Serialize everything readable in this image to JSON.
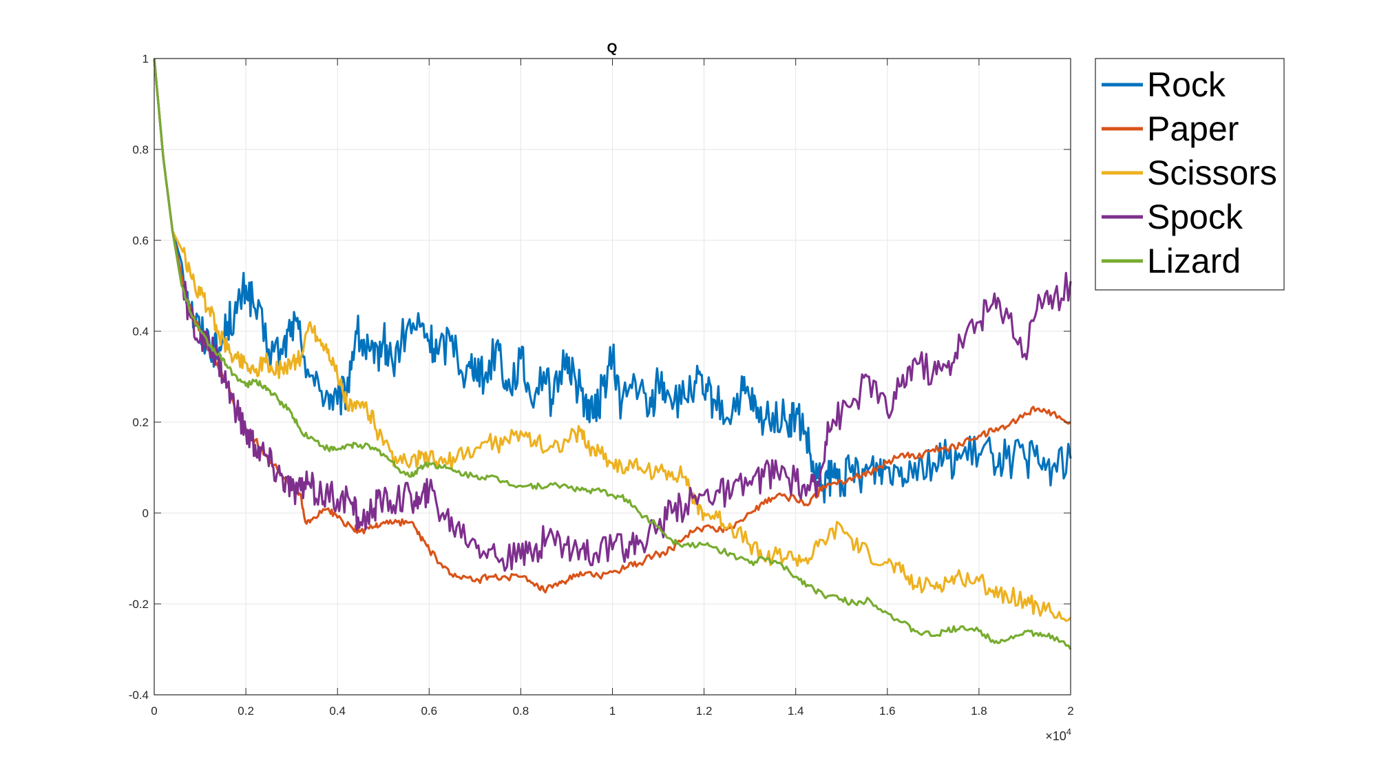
{
  "chart_data": {
    "type": "line",
    "title": "Q",
    "xlabel": "",
    "ylabel": "",
    "xlim": [
      0,
      20000
    ],
    "ylim": [
      -0.4,
      1
    ],
    "x_ticks": [
      0,
      2000,
      4000,
      6000,
      8000,
      10000,
      12000,
      14000,
      16000,
      18000,
      20000
    ],
    "x_tick_labels": [
      "0",
      "0.2",
      "0.4",
      "0.6",
      "0.8",
      "1",
      "1.2",
      "1.4",
      "1.6",
      "1.8",
      "2"
    ],
    "x_exponent_label": "×10",
    "x_exponent_power": "4",
    "y_ticks": [
      -0.4,
      -0.2,
      0,
      0.2,
      0.4,
      0.6,
      0.8,
      1
    ],
    "y_tick_labels": [
      "-0.4",
      "-0.2",
      "0",
      "0.2",
      "0.4",
      "0.6",
      "0.8",
      "1"
    ],
    "grid": true,
    "legend_position": "outside-top-right",
    "series": [
      {
        "name": "Rock",
        "color": "#0072BD",
        "x": [
          0,
          200,
          400,
          600,
          800,
          1000,
          1200,
          1400,
          1600,
          1800,
          2000,
          2200,
          2500,
          2800,
          3000,
          3200,
          3500,
          3800,
          4000,
          4200,
          4400,
          4600,
          4800,
          5000,
          5200,
          5500,
          5800,
          6000,
          6200,
          6500,
          6800,
          7000,
          7200,
          7500,
          7700,
          8000,
          8200,
          8500,
          8700,
          9000,
          9200,
          9400,
          9600,
          9800,
          10000,
          10200,
          10500,
          10800,
          11000,
          11200,
          11500,
          11800,
          12000,
          12200,
          12500,
          12800,
          13000,
          13200,
          13500,
          13800,
          14000,
          14200,
          14400,
          14600,
          14800,
          15000,
          15200,
          15500,
          15800,
          16000,
          16300,
          16600,
          17000,
          17300,
          17600,
          18000,
          18300,
          18600,
          19000,
          19300,
          19600,
          20000
        ],
        "y": [
          1,
          0.78,
          0.62,
          0.55,
          0.45,
          0.4,
          0.38,
          0.35,
          0.42,
          0.44,
          0.5,
          0.45,
          0.36,
          0.35,
          0.42,
          0.38,
          0.28,
          0.26,
          0.24,
          0.27,
          0.4,
          0.36,
          0.33,
          0.38,
          0.33,
          0.4,
          0.41,
          0.38,
          0.35,
          0.39,
          0.3,
          0.34,
          0.29,
          0.38,
          0.27,
          0.34,
          0.26,
          0.31,
          0.24,
          0.35,
          0.29,
          0.25,
          0.21,
          0.28,
          0.34,
          0.24,
          0.29,
          0.22,
          0.29,
          0.27,
          0.24,
          0.29,
          0.26,
          0.25,
          0.21,
          0.26,
          0.25,
          0.2,
          0.22,
          0.2,
          0.21,
          0.18,
          0.08,
          0.06,
          0.08,
          0.07,
          0.09,
          0.09,
          0.1,
          0.1,
          0.1,
          0.11,
          0.11,
          0.12,
          0.12,
          0.13,
          0.13,
          0.12,
          0.12,
          0.11,
          0.1,
          0.12
        ]
      },
      {
        "name": "Paper",
        "color": "#D95319",
        "x": [
          0,
          200,
          400,
          600,
          800,
          1000,
          1200,
          1400,
          1600,
          1800,
          2000,
          2200,
          2500,
          2800,
          3000,
          3200,
          3300,
          3500,
          3800,
          4000,
          4300,
          4500,
          4800,
          5000,
          5300,
          5600,
          5800,
          6000,
          6300,
          6600,
          7000,
          7300,
          7600,
          8000,
          8300,
          8500,
          8800,
          9000,
          9300,
          9600,
          10000,
          10300,
          10600,
          11000,
          11300,
          11600,
          12000,
          12300,
          12600,
          13000,
          13300,
          13600,
          14000,
          14300,
          14600,
          15000,
          15300,
          15600,
          16000,
          16300,
          16600,
          17000,
          17300,
          17600,
          18000,
          18300,
          18600,
          19000,
          19300,
          19600,
          20000
        ],
        "y": [
          1,
          0.78,
          0.62,
          0.52,
          0.44,
          0.4,
          0.36,
          0.32,
          0.28,
          0.22,
          0.18,
          0.16,
          0.12,
          0.08,
          0.06,
          0.04,
          -0.02,
          -0.01,
          0.01,
          -0.01,
          -0.03,
          -0.04,
          -0.03,
          -0.02,
          -0.02,
          -0.02,
          -0.05,
          -0.08,
          -0.12,
          -0.14,
          -0.15,
          -0.14,
          -0.14,
          -0.14,
          -0.16,
          -0.17,
          -0.16,
          -0.15,
          -0.13,
          -0.14,
          -0.13,
          -0.12,
          -0.11,
          -0.09,
          -0.08,
          -0.05,
          -0.03,
          -0.04,
          -0.03,
          0.0,
          0.02,
          0.04,
          0.03,
          0.02,
          0.06,
          0.07,
          0.08,
          0.09,
          0.11,
          0.13,
          0.12,
          0.14,
          0.14,
          0.15,
          0.17,
          0.18,
          0.19,
          0.22,
          0.23,
          0.22,
          0.2
        ]
      },
      {
        "name": "Scissors",
        "color": "#EDB120",
        "x": [
          0,
          200,
          400,
          600,
          800,
          1000,
          1200,
          1400,
          1600,
          1800,
          2000,
          2200,
          2400,
          2600,
          2800,
          3000,
          3200,
          3400,
          3600,
          3800,
          4000,
          4200,
          4400,
          4600,
          4800,
          5000,
          5300,
          5600,
          5800,
          6000,
          6300,
          6600,
          7000,
          7300,
          7600,
          8000,
          8300,
          8600,
          9000,
          9300,
          9500,
          9700,
          10000,
          10300,
          10600,
          11000,
          11300,
          11600,
          11800,
          12000,
          12300,
          12600,
          13000,
          13300,
          13600,
          14000,
          14300,
          14600,
          15000,
          15300,
          15600,
          16000,
          16300,
          16600,
          17000,
          17300,
          17600,
          18000,
          18300,
          18600,
          19000,
          19300,
          19600,
          20000
        ],
        "y": [
          1,
          0.78,
          0.62,
          0.58,
          0.52,
          0.48,
          0.45,
          0.4,
          0.36,
          0.34,
          0.33,
          0.31,
          0.34,
          0.31,
          0.32,
          0.33,
          0.34,
          0.42,
          0.38,
          0.36,
          0.3,
          0.24,
          0.23,
          0.24,
          0.2,
          0.15,
          0.11,
          0.11,
          0.12,
          0.12,
          0.11,
          0.12,
          0.14,
          0.16,
          0.15,
          0.18,
          0.16,
          0.14,
          0.16,
          0.18,
          0.14,
          0.14,
          0.11,
          0.1,
          0.1,
          0.09,
          0.09,
          0.08,
          0.02,
          0.0,
          -0.01,
          -0.03,
          -0.07,
          -0.1,
          -0.09,
          -0.1,
          -0.1,
          -0.06,
          -0.03,
          -0.07,
          -0.09,
          -0.11,
          -0.13,
          -0.16,
          -0.16,
          -0.15,
          -0.14,
          -0.15,
          -0.17,
          -0.18,
          -0.19,
          -0.21,
          -0.22,
          -0.23
        ]
      },
      {
        "name": "Spock",
        "color": "#7E2F8E",
        "x": [
          0,
          200,
          400,
          600,
          800,
          1000,
          1200,
          1400,
          1600,
          1800,
          2000,
          2200,
          2400,
          2600,
          2800,
          3000,
          3200,
          3400,
          3600,
          3800,
          4000,
          4300,
          4500,
          4800,
          5000,
          5300,
          5600,
          5800,
          6000,
          6300,
          6600,
          7000,
          7300,
          7600,
          8000,
          8300,
          8600,
          9000,
          9300,
          9600,
          10000,
          10300,
          10600,
          11000,
          11300,
          11600,
          12000,
          12300,
          12600,
          13000,
          13300,
          13600,
          14000,
          14300,
          14500,
          14700,
          15000,
          15300,
          15600,
          16000,
          16300,
          16600,
          17000,
          17300,
          17600,
          18000,
          18300,
          18600,
          19000,
          19300,
          19600,
          20000
        ],
        "y": [
          1,
          0.78,
          0.62,
          0.5,
          0.43,
          0.38,
          0.36,
          0.34,
          0.28,
          0.22,
          0.18,
          0.15,
          0.13,
          0.1,
          0.08,
          0.05,
          0.05,
          0.06,
          0.04,
          0.04,
          0.03,
          0.02,
          -0.02,
          0.01,
          0.03,
          0.03,
          0.04,
          0.02,
          0.05,
          0.0,
          -0.03,
          -0.06,
          -0.08,
          -0.1,
          -0.1,
          -0.08,
          -0.05,
          -0.07,
          -0.08,
          -0.09,
          -0.08,
          -0.08,
          -0.06,
          -0.03,
          0.0,
          0.02,
          0.04,
          0.05,
          0.04,
          0.07,
          0.08,
          0.09,
          0.07,
          0.05,
          0.06,
          0.2,
          0.22,
          0.25,
          0.3,
          0.22,
          0.28,
          0.34,
          0.31,
          0.32,
          0.38,
          0.42,
          0.46,
          0.45,
          0.35,
          0.48,
          0.45,
          0.51
        ]
      },
      {
        "name": "Lizard",
        "color": "#77AC30",
        "x": [
          0,
          200,
          400,
          600,
          800,
          1000,
          1200,
          1400,
          1600,
          1800,
          2000,
          2200,
          2400,
          2600,
          2800,
          3000,
          3200,
          3500,
          3800,
          4000,
          4300,
          4500,
          4800,
          5000,
          5300,
          5600,
          5800,
          6000,
          6300,
          6600,
          7000,
          7300,
          7600,
          8000,
          8300,
          8600,
          9000,
          9300,
          9600,
          10000,
          10300,
          10600,
          11000,
          11300,
          11600,
          12000,
          12300,
          12600,
          13000,
          13300,
          13600,
          14000,
          14300,
          14600,
          15000,
          15300,
          15600,
          16000,
          16300,
          16600,
          17000,
          17300,
          17600,
          18000,
          18300,
          18600,
          19000,
          19300,
          19600,
          20000
        ],
        "y": [
          1,
          0.78,
          0.62,
          0.5,
          0.44,
          0.4,
          0.37,
          0.35,
          0.32,
          0.3,
          0.28,
          0.29,
          0.28,
          0.26,
          0.24,
          0.22,
          0.18,
          0.16,
          0.14,
          0.14,
          0.15,
          0.15,
          0.14,
          0.13,
          0.1,
          0.08,
          0.1,
          0.11,
          0.1,
          0.09,
          0.08,
          0.08,
          0.07,
          0.06,
          0.06,
          0.06,
          0.06,
          0.05,
          0.05,
          0.04,
          0.03,
          0.0,
          -0.03,
          -0.06,
          -0.07,
          -0.07,
          -0.08,
          -0.09,
          -0.11,
          -0.1,
          -0.11,
          -0.14,
          -0.16,
          -0.18,
          -0.19,
          -0.2,
          -0.19,
          -0.22,
          -0.24,
          -0.26,
          -0.27,
          -0.26,
          -0.25,
          -0.26,
          -0.28,
          -0.28,
          -0.26,
          -0.27,
          -0.27,
          -0.3
        ]
      }
    ]
  }
}
